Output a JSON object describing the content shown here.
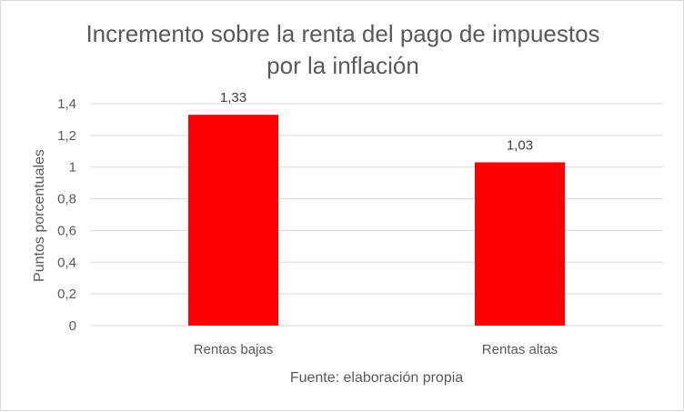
{
  "chart_data": {
    "type": "bar",
    "title_lines": [
      "Incremento sobre la renta del pago de impuestos",
      "por la inflación"
    ],
    "categories": [
      "Rentas bajas",
      "Rentas altas"
    ],
    "values": [
      1.33,
      1.03
    ],
    "data_labels": [
      "1,33",
      "1,03"
    ],
    "xlabel": "Fuente: elaboración propia",
    "ylabel": "Puntos porcentuales",
    "ylim": [
      0,
      1.4
    ],
    "yticks": [
      0,
      0.2,
      0.4,
      0.6,
      0.8,
      1,
      1.2,
      1.4
    ],
    "ytick_labels": [
      "0",
      "0,2",
      "0,4",
      "0,6",
      "0,8",
      "1",
      "1,2",
      "1,4"
    ],
    "grid": true,
    "legend": "none",
    "bar_color": "#ff0000",
    "grid_color": "#d9d9d9"
  }
}
